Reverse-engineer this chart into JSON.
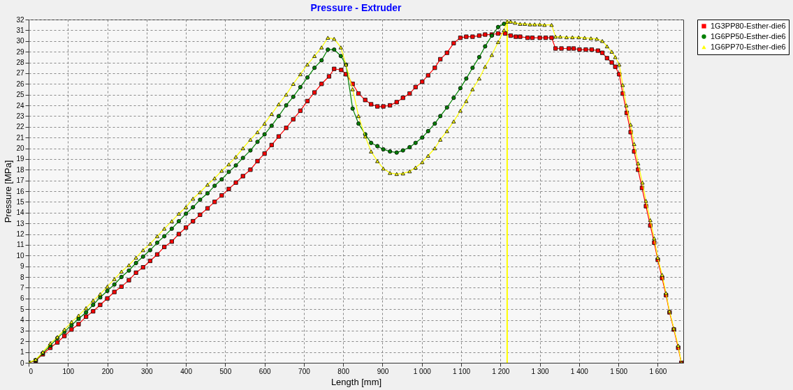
{
  "chart_data": {
    "type": "line",
    "title": "Pressure - Extruder",
    "xlabel": "Length [mm]",
    "ylabel": "Pressure [MPa]",
    "xlim": [
      0,
      1665
    ],
    "ylim": [
      0,
      32
    ],
    "xticks": [
      0,
      100,
      200,
      300,
      400,
      500,
      600,
      700,
      800,
      900,
      {
        "value": 1000,
        "label": "1 000"
      },
      {
        "value": 1100,
        "label": "1 100"
      },
      {
        "value": 1200,
        "label": "1 200"
      },
      {
        "value": 1300,
        "label": "1 300"
      },
      {
        "value": 1400,
        "label": "1 400"
      },
      {
        "value": 1500,
        "label": "1 500"
      },
      {
        "value": 1600,
        "label": "1 600"
      }
    ],
    "yticks": [
      0,
      1,
      2,
      3,
      4,
      5,
      6,
      7,
      8,
      9,
      10,
      11,
      12,
      13,
      14,
      15,
      16,
      17,
      18,
      19,
      20,
      21,
      22,
      23,
      24,
      25,
      26,
      27,
      28,
      29,
      30,
      31,
      32
    ],
    "grid": true,
    "legend": "top right",
    "line_style": "solid",
    "ref_lines": [
      {
        "axis": "x",
        "value": 1217,
        "color": "#ffff00"
      }
    ],
    "series": [
      {
        "name": "1G3PP80-Esther-die6",
        "color": "#ff0000",
        "marker": "square",
        "x": [
          0,
          18,
          36,
          55,
          73,
          91,
          109,
          127,
          146,
          164,
          182,
          200,
          218,
          236,
          255,
          273,
          291,
          309,
          327,
          345,
          364,
          382,
          400,
          418,
          436,
          455,
          473,
          491,
          509,
          527,
          545,
          564,
          582,
          600,
          618,
          636,
          655,
          673,
          691,
          709,
          727,
          745,
          764,
          777,
          795,
          807,
          824,
          839,
          856,
          871,
          887,
          902,
          919,
          936,
          952,
          969,
          984,
          1001,
          1016,
          1033,
          1047,
          1064,
          1081,
          1098,
          1113,
          1129,
          1146,
          1161,
          1178,
          1194,
          1212,
          1226,
          1239,
          1250,
          1269,
          1281,
          1300,
          1315,
          1330,
          1340,
          1355,
          1374,
          1386,
          1401,
          1417,
          1432,
          1448,
          1459,
          1471,
          1483,
          1492,
          1502,
          1511,
          1521,
          1531,
          1540,
          1550,
          1560,
          1570,
          1581,
          1591,
          1600,
          1611,
          1621,
          1630,
          1641,
          1652,
          1660
        ],
        "values": [
          0,
          0.2,
          0.8,
          1.4,
          1.9,
          2.5,
          3.1,
          3.6,
          4.3,
          4.8,
          5.4,
          6.0,
          6.6,
          7.1,
          7.7,
          8.4,
          8.9,
          9.5,
          10.1,
          10.8,
          11.3,
          12.0,
          12.6,
          13.2,
          13.8,
          14.4,
          15.0,
          15.6,
          16.2,
          16.8,
          17.4,
          18.0,
          18.8,
          19.5,
          20.3,
          21.1,
          21.9,
          22.7,
          23.5,
          24.4,
          25.2,
          26.0,
          26.7,
          27.4,
          27.3,
          26.9,
          26.0,
          25.1,
          24.5,
          24.1,
          23.9,
          23.9,
          24.0,
          24.3,
          24.7,
          25.1,
          25.7,
          26.2,
          26.8,
          27.5,
          28.3,
          28.9,
          29.8,
          30.3,
          30.4,
          30.4,
          30.5,
          30.6,
          30.6,
          30.7,
          30.7,
          30.5,
          30.4,
          30.4,
          30.3,
          30.3,
          30.3,
          30.3,
          30.3,
          29.3,
          29.3,
          29.3,
          29.3,
          29.2,
          29.2,
          29.2,
          29.1,
          28.9,
          28.4,
          28.0,
          27.6,
          26.9,
          25.1,
          23.3,
          21.5,
          19.7,
          18.0,
          16.3,
          14.6,
          12.8,
          11.2,
          9.6,
          7.9,
          6.3,
          4.7,
          3.1,
          1.4,
          0
        ]
      },
      {
        "name": "1G6PP50-Esther-die6",
        "color": "#008000",
        "marker": "circle",
        "x": [
          0,
          18,
          36,
          55,
          73,
          91,
          109,
          127,
          146,
          164,
          182,
          200,
          218,
          236,
          255,
          273,
          291,
          309,
          327,
          345,
          364,
          382,
          400,
          418,
          436,
          455,
          473,
          491,
          509,
          527,
          545,
          564,
          582,
          600,
          618,
          636,
          655,
          673,
          691,
          709,
          727,
          745,
          761,
          777,
          794,
          807,
          824,
          839,
          856,
          871,
          887,
          902,
          919,
          936,
          952,
          969,
          984,
          1001,
          1016,
          1033,
          1047,
          1064,
          1081,
          1098,
          1113,
          1129,
          1146,
          1161,
          1178,
          1194,
          1209
        ],
        "values": [
          0,
          0.25,
          0.9,
          1.6,
          2.3,
          2.9,
          3.5,
          4.1,
          4.7,
          5.4,
          6.1,
          6.7,
          7.3,
          8.0,
          8.6,
          9.3,
          9.9,
          10.5,
          11.2,
          11.8,
          12.5,
          13.2,
          13.9,
          14.5,
          15.2,
          15.8,
          16.5,
          17.1,
          17.8,
          18.4,
          19.1,
          19.8,
          20.6,
          21.3,
          22.1,
          23.0,
          24.0,
          24.8,
          25.7,
          26.6,
          27.5,
          28.2,
          29.2,
          29.2,
          28.6,
          27.8,
          23.7,
          22.3,
          21.3,
          20.5,
          20.2,
          19.9,
          19.7,
          19.6,
          19.8,
          20.1,
          20.5,
          21.0,
          21.6,
          22.3,
          23.0,
          23.8,
          24.7,
          25.6,
          26.5,
          27.5,
          28.5,
          29.5,
          30.5,
          31.3,
          31.6
        ]
      },
      {
        "name": "1G6PP70-Esther-die6",
        "color": "#ffff00",
        "marker": "triangle",
        "x": [
          0,
          18,
          36,
          55,
          73,
          91,
          109,
          127,
          146,
          164,
          182,
          200,
          218,
          236,
          255,
          273,
          291,
          309,
          327,
          345,
          364,
          382,
          400,
          418,
          436,
          455,
          473,
          491,
          509,
          527,
          545,
          564,
          582,
          600,
          618,
          636,
          655,
          673,
          691,
          709,
          727,
          745,
          761,
          777,
          794,
          807,
          824,
          839,
          856,
          871,
          887,
          902,
          919,
          936,
          952,
          969,
          984,
          1001,
          1016,
          1033,
          1047,
          1064,
          1081,
          1098,
          1113,
          1129,
          1146,
          1161,
          1178,
          1194,
          1209,
          1217,
          1226,
          1237,
          1250,
          1262,
          1275,
          1287,
          1300,
          1312,
          1330,
          1340,
          1352,
          1368,
          1383,
          1399,
          1414,
          1430,
          1445,
          1459,
          1471,
          1483,
          1492,
          1502,
          1511,
          1520,
          1531,
          1540,
          1550,
          1561,
          1570,
          1581,
          1591,
          1600,
          1611,
          1621,
          1630,
          1641,
          1652,
          1660
        ],
        "values": [
          0,
          0.3,
          1.0,
          1.8,
          2.4,
          3.1,
          3.8,
          4.4,
          5.1,
          5.8,
          6.4,
          7.1,
          7.8,
          8.5,
          9.1,
          9.8,
          10.5,
          11.1,
          11.8,
          12.5,
          13.2,
          13.9,
          14.5,
          15.3,
          15.9,
          16.6,
          17.2,
          17.9,
          18.5,
          19.2,
          20.0,
          20.8,
          21.5,
          22.3,
          23.2,
          24.1,
          25.0,
          26.0,
          26.9,
          27.8,
          28.6,
          29.4,
          30.3,
          30.2,
          29.4,
          27.8,
          25.5,
          23.0,
          21.1,
          19.7,
          18.8,
          18.1,
          17.7,
          17.6,
          17.65,
          17.85,
          18.2,
          18.7,
          19.3,
          20.0,
          20.8,
          21.6,
          22.5,
          23.5,
          24.4,
          25.5,
          26.5,
          27.6,
          28.7,
          29.9,
          31.0,
          31.8,
          31.8,
          31.7,
          31.6,
          31.6,
          31.55,
          31.55,
          31.55,
          31.5,
          31.5,
          30.4,
          30.4,
          30.35,
          30.35,
          30.35,
          30.3,
          30.25,
          30.2,
          30.0,
          29.5,
          29.0,
          28.5,
          27.8,
          25.9,
          24.0,
          22.2,
          20.4,
          18.6,
          16.8,
          15.1,
          13.3,
          11.6,
          9.8,
          8.2,
          6.5,
          4.8,
          3.2,
          1.6,
          0
        ]
      }
    ]
  }
}
